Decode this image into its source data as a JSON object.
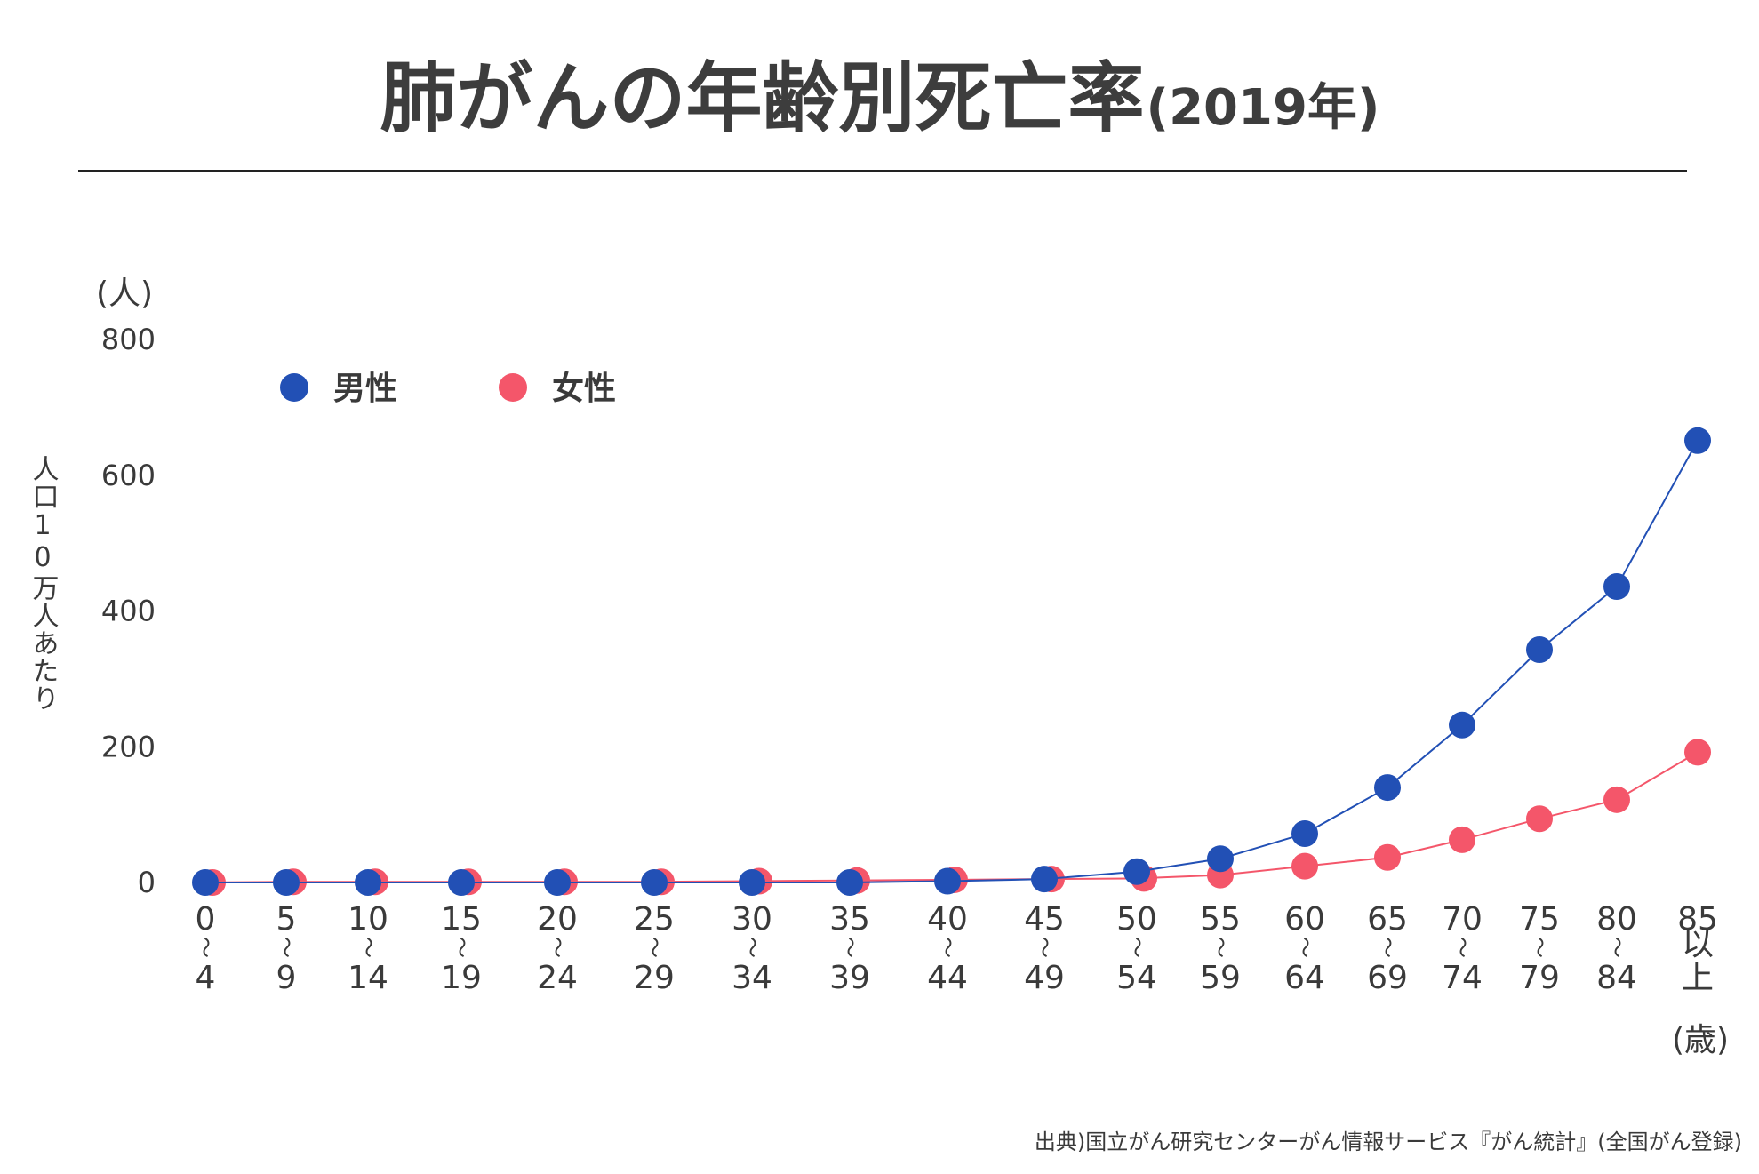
{
  "chart_data": {
    "type": "line",
    "title": "肺がんの年齢別死亡率",
    "title_suffix": "(2019年)",
    "y_unit": "(人)",
    "ylabel": "人口10万人あたり",
    "ylim": [
      0,
      800
    ],
    "y_ticks": [
      0,
      200,
      400,
      600,
      800
    ],
    "categories": [
      {
        "lines": [
          "0",
          "〜",
          "4"
        ]
      },
      {
        "lines": [
          "5",
          "〜",
          "9"
        ]
      },
      {
        "lines": [
          "10",
          "〜",
          "14"
        ]
      },
      {
        "lines": [
          "15",
          "〜",
          "19"
        ]
      },
      {
        "lines": [
          "20",
          "〜",
          "24"
        ]
      },
      {
        "lines": [
          "25",
          "〜",
          "29"
        ]
      },
      {
        "lines": [
          "30",
          "〜",
          "34"
        ]
      },
      {
        "lines": [
          "35",
          "〜",
          "39"
        ]
      },
      {
        "lines": [
          "40",
          "〜",
          "44"
        ]
      },
      {
        "lines": [
          "45",
          "〜",
          "49"
        ]
      },
      {
        "lines": [
          "50",
          "〜",
          "54"
        ]
      },
      {
        "lines": [
          "55",
          "〜",
          "59"
        ]
      },
      {
        "lines": [
          "60",
          "〜",
          "64"
        ]
      },
      {
        "lines": [
          "65",
          "〜",
          "69"
        ]
      },
      {
        "lines": [
          "70",
          "〜",
          "74"
        ]
      },
      {
        "lines": [
          "75",
          "〜",
          "79"
        ]
      },
      {
        "lines": [
          "80",
          "〜",
          "84"
        ]
      },
      {
        "lines": [
          "85",
          "以",
          "上"
        ]
      }
    ],
    "x_unit": "(歳)",
    "series": [
      {
        "name": "男性",
        "color": "#2250b5",
        "values": [
          0,
          0,
          0,
          0,
          0,
          0,
          0,
          0,
          2,
          5,
          16,
          35,
          72,
          140,
          232,
          343,
          436,
          651
        ]
      },
      {
        "name": "女性",
        "color": "#f4566a",
        "values": [
          0,
          1,
          1,
          1,
          1,
          1,
          2,
          3,
          4,
          5,
          6,
          11,
          24,
          37,
          63,
          94,
          122,
          192
        ]
      }
    ],
    "legend_position": "top-left",
    "grid": false,
    "source": "出典)国立がん研究センターがん情報サービス『がん統計』(全国がん登録)"
  }
}
